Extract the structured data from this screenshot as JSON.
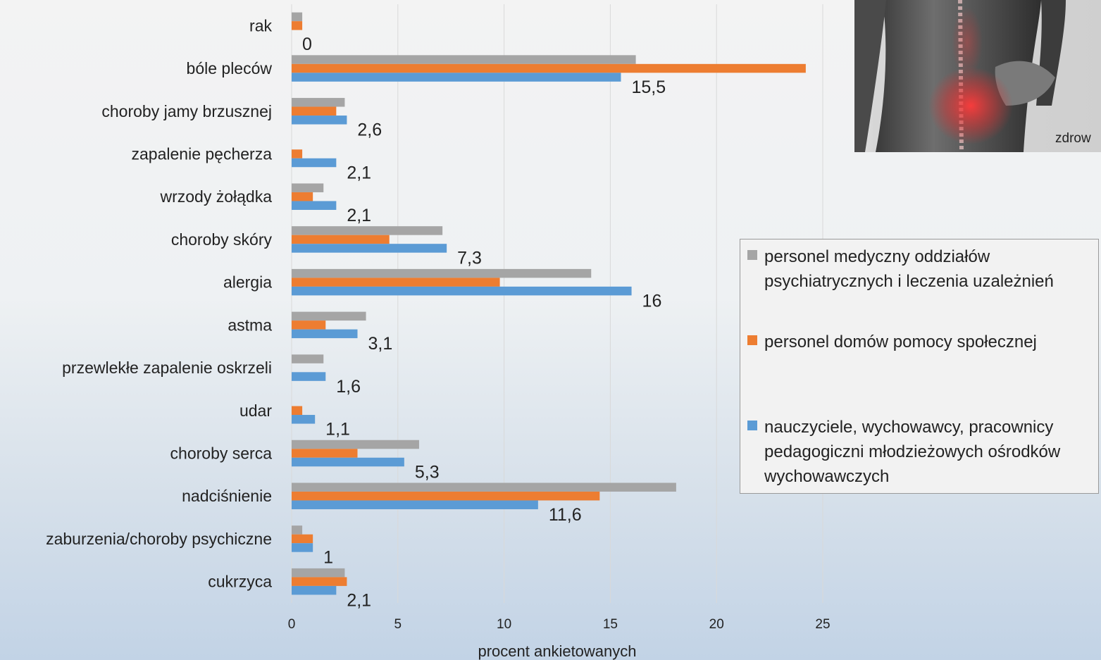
{
  "chart_data": {
    "type": "bar",
    "orientation": "horizontal",
    "xlabel": "procent ankietowanych",
    "xlim": [
      0,
      25
    ],
    "xticks": [
      0,
      5,
      10,
      15,
      20,
      25
    ],
    "grid": "vertical",
    "legend_position": "right",
    "categories": [
      "rak",
      "bóle pleców",
      "choroby jamy brzusznej",
      "zapalenie pęcherza",
      "wrzody żołądka",
      "choroby skóry",
      "alergia",
      "astma",
      "przewlekłe zapalenie oskrzeli",
      "udar",
      "choroby serca",
      "nadciśnienie",
      "zaburzenia/choroby psychiczne",
      "cukrzyca"
    ],
    "series": [
      {
        "name": "personel medyczny oddziałów psychiatrycznych i leczenia uzależnień",
        "color": "#a5a5a5",
        "values": [
          0.5,
          16.2,
          2.5,
          0,
          1.5,
          7.1,
          14.1,
          3.5,
          1.5,
          0,
          6.0,
          18.1,
          0.5,
          2.5
        ]
      },
      {
        "name": "personel domów pomocy społecznej",
        "color": "#ed7d31",
        "values": [
          0.5,
          24.2,
          2.1,
          0.5,
          1.0,
          4.6,
          9.8,
          1.6,
          0,
          0.5,
          3.1,
          14.5,
          1.0,
          2.6
        ]
      },
      {
        "name": "nauczyciele, wychowawcy, pracownicy pedagogiczni młodzieżowych ośrodków wychowawczych",
        "color": "#5b9bd5",
        "values": [
          0,
          15.5,
          2.6,
          2.1,
          2.1,
          7.3,
          16,
          3.1,
          1.6,
          1.1,
          5.3,
          11.6,
          1,
          2.1
        ]
      }
    ],
    "data_labels": [
      "0",
      "15,5",
      "2,6",
      "2,1",
      "2,1",
      "7,3",
      "16",
      "3,1",
      "1,6",
      "1,1",
      "5,3",
      "11,6",
      "1",
      "2,1"
    ]
  },
  "photo": {
    "credit": "zdrow",
    "description_icon": "back-pain-photo"
  }
}
